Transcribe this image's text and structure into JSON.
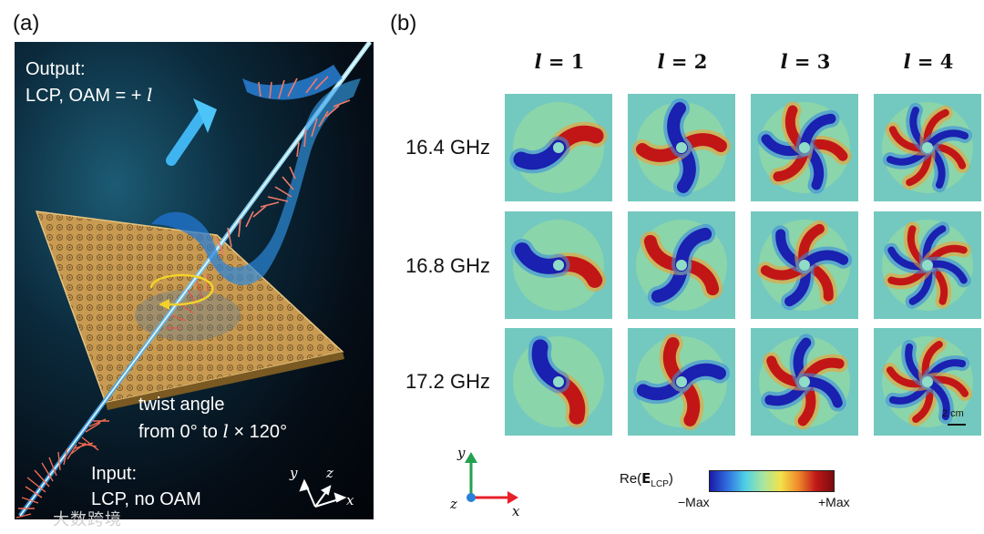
{
  "panel_a": {
    "label": "(a)",
    "output_line1": "Output:",
    "output_line2_prefix": "LCP,  OAM = + ",
    "output_line2_symbol": "l",
    "twist_line1": "twist angle",
    "twist_prefix": "from 0",
    "twist_deg1": "°",
    "twist_to": " to ",
    "twist_symbol": "l",
    "twist_times": " × 120",
    "twist_deg2": "°",
    "input_line1": "Input:",
    "input_line2": "LCP, no OAM",
    "axes": {
      "x": "x",
      "y": "y",
      "z": "z"
    }
  },
  "panel_b": {
    "label": "(b)",
    "columns": [
      {
        "symbol": "l",
        "eq": " = 1",
        "l": 1
      },
      {
        "symbol": "l",
        "eq": " = 2",
        "l": 2
      },
      {
        "symbol": "l",
        "eq": " = 3",
        "l": 3
      },
      {
        "symbol": "l",
        "eq": " = 4",
        "l": 4
      }
    ],
    "rows": [
      {
        "label": "16.4 GHz"
      },
      {
        "label": "16.8 GHz"
      },
      {
        "label": "17.2 GHz"
      }
    ],
    "scale_bar": "2 cm",
    "colorbar": {
      "title_prefix": "Re(",
      "title_bold": "E",
      "title_sub": "LCP",
      "title_suffix": ")",
      "min_label": "−Max",
      "max_label": "+Max",
      "colors": [
        "#1a1aa8",
        "#2f6fe0",
        "#4fd0e6",
        "#a6e6a0",
        "#f3e24a",
        "#f08a2a",
        "#c01818",
        "#7a0c0c"
      ]
    },
    "coord_axes": {
      "x": "x",
      "y": "y",
      "z": "z"
    },
    "coord_colors": {
      "x": "#e8202a",
      "y": "#23a050",
      "z": "#2a80d8"
    }
  },
  "watermark": "大数跨境"
}
